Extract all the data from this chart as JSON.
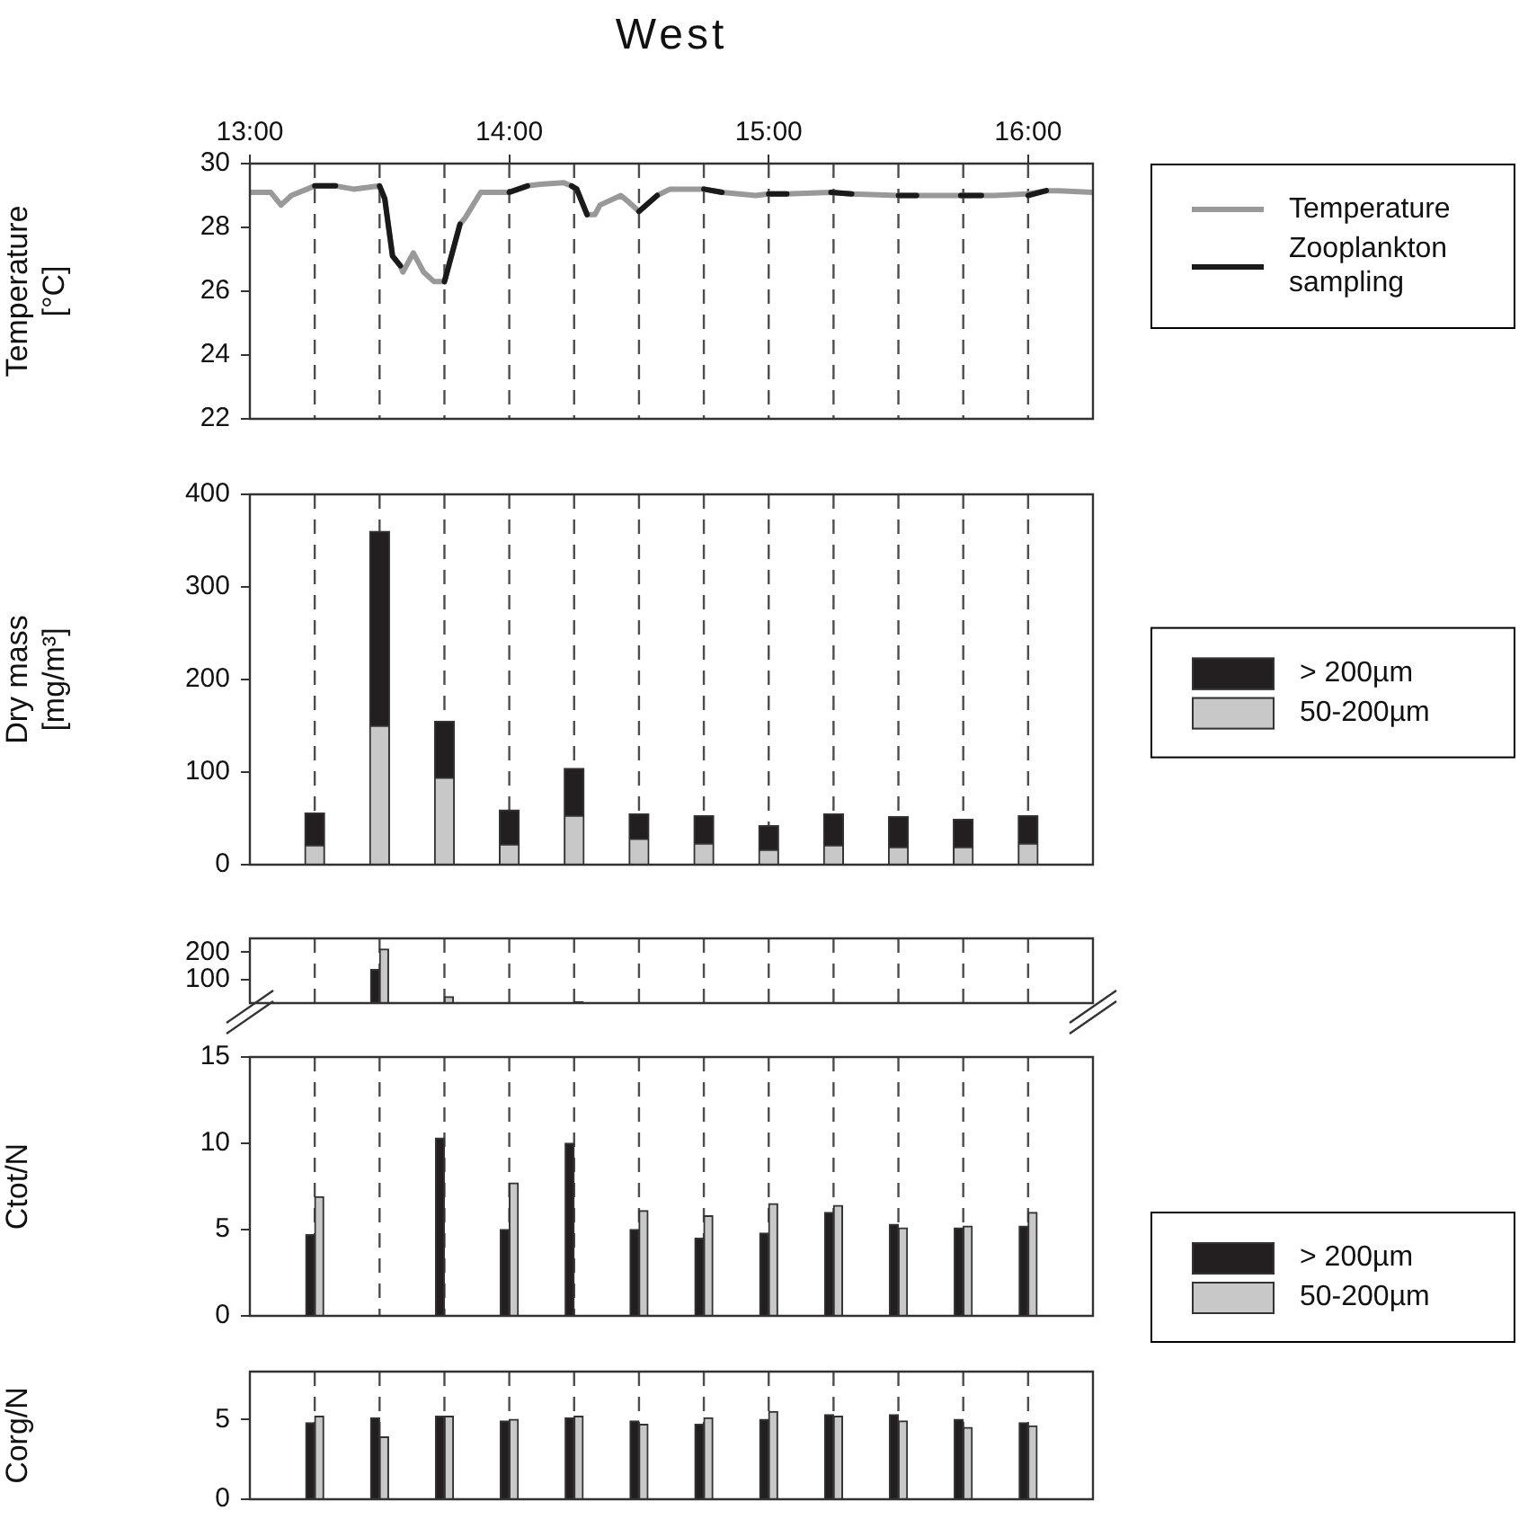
{
  "chart_data": [
    {
      "type": "line",
      "title": "West",
      "ylabel": "Temperature [°C]",
      "xlim": [
        13,
        16.25
      ],
      "xticks": [
        {
          "value": 13,
          "label": "13:00"
        },
        {
          "value": 14,
          "label": "14:00"
        },
        {
          "value": 15,
          "label": "15:00"
        },
        {
          "value": 16,
          "label": "16:00"
        }
      ],
      "ylim": [
        22,
        30
      ],
      "yticks": [
        22,
        24,
        26,
        28,
        30
      ],
      "legend": "top right",
      "series": [
        {
          "name": "Temperature",
          "color": "#999999",
          "x": [
            13.0,
            13.08,
            13.12,
            13.16,
            13.25,
            13.33,
            13.4,
            13.5,
            13.52,
            13.55,
            13.58,
            13.59,
            13.63,
            13.67,
            13.71,
            13.75,
            13.81,
            13.83,
            13.89,
            14.0,
            14.07,
            14.12,
            14.21,
            14.24,
            14.26,
            14.3,
            14.33,
            14.35,
            14.43,
            14.46,
            14.5,
            14.57,
            14.62,
            14.75,
            14.82,
            14.95,
            15.0,
            15.07,
            15.24,
            15.32,
            15.5,
            15.57,
            15.74,
            15.82,
            15.87,
            16.0,
            16.07,
            16.12,
            16.25
          ],
          "values": [
            29.1,
            29.1,
            28.7,
            29.0,
            29.3,
            29.3,
            29.2,
            29.3,
            28.9,
            27.1,
            26.8,
            26.6,
            27.2,
            26.6,
            26.3,
            26.3,
            28.1,
            28.3,
            29.1,
            29.1,
            29.3,
            29.35,
            29.4,
            29.3,
            29.2,
            28.4,
            28.4,
            28.7,
            29.0,
            28.8,
            28.5,
            29.0,
            29.2,
            29.2,
            29.1,
            29.0,
            29.05,
            29.05,
            29.1,
            29.05,
            29.0,
            29.0,
            29.0,
            29.0,
            29.0,
            29.05,
            29.15,
            29.15,
            29.1
          ]
        },
        {
          "name": "Zooplankton sampling",
          "color": "#1a1a1a",
          "x": [
            13.25,
            13.33,
            13.4,
            13.5,
            13.52,
            13.55,
            13.58,
            13.65,
            13.75,
            13.81,
            13.9,
            14.0,
            14.07,
            14.15,
            14.24,
            14.26,
            14.3,
            14.4,
            14.5,
            14.57,
            14.65,
            14.75,
            14.82,
            14.9,
            15.0,
            15.07,
            15.15,
            15.24,
            15.32,
            15.4,
            15.5,
            15.57,
            15.65,
            15.74,
            15.82,
            15.9,
            16.0,
            16.07
          ],
          "values": [
            29.3,
            29.3,
            null,
            29.3,
            28.9,
            27.1,
            26.8,
            null,
            26.3,
            28.1,
            null,
            29.1,
            29.3,
            null,
            29.3,
            29.2,
            28.4,
            null,
            28.5,
            29.0,
            null,
            29.2,
            29.1,
            null,
            29.05,
            29.05,
            null,
            29.1,
            29.05,
            null,
            29.0,
            29.0,
            null,
            29.0,
            29.0,
            null,
            29.0,
            29.15
          ]
        }
      ],
      "ref_lines": [
        {
          "axis": "x",
          "value": 13.25,
          "color": "#4d4d4d",
          "line_style": "dashed"
        },
        {
          "axis": "x",
          "value": 13.5,
          "color": "#4d4d4d",
          "line_style": "dashed"
        },
        {
          "axis": "x",
          "value": 13.75,
          "color": "#4d4d4d",
          "line_style": "dashed"
        },
        {
          "axis": "x",
          "value": 14,
          "color": "#4d4d4d",
          "line_style": "dashed"
        },
        {
          "axis": "x",
          "value": 14.25,
          "color": "#4d4d4d",
          "line_style": "dashed"
        },
        {
          "axis": "x",
          "value": 14.5,
          "color": "#4d4d4d",
          "line_style": "dashed"
        },
        {
          "axis": "x",
          "value": 14.75,
          "color": "#4d4d4d",
          "line_style": "dashed"
        },
        {
          "axis": "x",
          "value": 15,
          "color": "#4d4d4d",
          "line_style": "dashed"
        },
        {
          "axis": "x",
          "value": 15.25,
          "color": "#4d4d4d",
          "line_style": "dashed"
        },
        {
          "axis": "x",
          "value": 15.5,
          "color": "#4d4d4d",
          "line_style": "dashed"
        },
        {
          "axis": "x",
          "value": 15.75,
          "color": "#4d4d4d",
          "line_style": "dashed"
        },
        {
          "axis": "x",
          "value": 16,
          "color": "#4d4d4d",
          "line_style": "dashed"
        }
      ]
    },
    {
      "type": "bar",
      "stacked": true,
      "ylabel": "Dry mass [mg/m³]",
      "x": [
        13.25,
        13.5,
        13.75,
        14,
        14.25,
        14.5,
        14.75,
        15,
        15.25,
        15.5,
        15.75,
        16
      ],
      "xlim": [
        13,
        16.25
      ],
      "ylim": [
        0,
        400
      ],
      "yticks": [
        0,
        100,
        200,
        300,
        400
      ],
      "tick_labels": "y",
      "legend": "right",
      "series": [
        {
          "name": "50-200µm",
          "color": "#c8c8c8",
          "values": [
            21,
            150,
            94,
            22,
            53,
            28,
            23,
            16,
            21,
            19,
            19,
            23
          ]
        },
        {
          "name": "> 200µm",
          "color": "#231f20",
          "values": [
            35,
            210,
            61,
            37,
            51,
            27,
            30,
            26,
            34,
            33,
            30,
            30
          ]
        }
      ],
      "ref_lines": [
        {
          "axis": "x",
          "value": 13.25,
          "color": "#4d4d4d",
          "line_style": "dashed"
        },
        {
          "axis": "x",
          "value": 13.5,
          "color": "#4d4d4d",
          "line_style": "dashed"
        },
        {
          "axis": "x",
          "value": 13.75,
          "color": "#4d4d4d",
          "line_style": "dashed"
        },
        {
          "axis": "x",
          "value": 14,
          "color": "#4d4d4d",
          "line_style": "dashed"
        },
        {
          "axis": "x",
          "value": 14.25,
          "color": "#4d4d4d",
          "line_style": "dashed"
        },
        {
          "axis": "x",
          "value": 14.5,
          "color": "#4d4d4d",
          "line_style": "dashed"
        },
        {
          "axis": "x",
          "value": 14.75,
          "color": "#4d4d4d",
          "line_style": "dashed"
        },
        {
          "axis": "x",
          "value": 15,
          "color": "#4d4d4d",
          "line_style": "dashed"
        },
        {
          "axis": "x",
          "value": 15.25,
          "color": "#4d4d4d",
          "line_style": "dashed"
        },
        {
          "axis": "x",
          "value": 15.5,
          "color": "#4d4d4d",
          "line_style": "dashed"
        },
        {
          "axis": "x",
          "value": 15.75,
          "color": "#4d4d4d",
          "line_style": "dashed"
        },
        {
          "axis": "x",
          "value": 16,
          "color": "#4d4d4d",
          "line_style": "dashed"
        }
      ]
    },
    {
      "type": "bar",
      "xlim": [
        13,
        16.25
      ],
      "ylim": [
        15,
        250
      ],
      "yticks": [
        100,
        200
      ],
      "tick_labels": "y",
      "series": [
        {
          "color": "#231f20",
          "x": [
            13.5
          ],
          "values": [
            137
          ]
        },
        {
          "color": "#c8c8c8",
          "x": [
            13.5,
            13.75,
            14.25
          ],
          "values": [
            211,
            38,
            20
          ]
        }
      ],
      "ref_lines": [
        {
          "axis": "x",
          "value": 13.25,
          "color": "#4d4d4d",
          "line_style": "dashed"
        },
        {
          "axis": "x",
          "value": 13.5,
          "color": "#4d4d4d",
          "line_style": "dashed"
        },
        {
          "axis": "x",
          "value": 13.75,
          "color": "#4d4d4d",
          "line_style": "dashed"
        },
        {
          "axis": "x",
          "value": 14,
          "color": "#4d4d4d",
          "line_style": "dashed"
        },
        {
          "axis": "x",
          "value": 14.25,
          "color": "#4d4d4d",
          "line_style": "dashed"
        },
        {
          "axis": "x",
          "value": 14.5,
          "color": "#4d4d4d",
          "line_style": "dashed"
        },
        {
          "axis": "x",
          "value": 14.75,
          "color": "#4d4d4d",
          "line_style": "dashed"
        },
        {
          "axis": "x",
          "value": 15,
          "color": "#4d4d4d",
          "line_style": "dashed"
        },
        {
          "axis": "x",
          "value": 15.25,
          "color": "#4d4d4d",
          "line_style": "dashed"
        },
        {
          "axis": "x",
          "value": 15.5,
          "color": "#4d4d4d",
          "line_style": "dashed"
        },
        {
          "axis": "x",
          "value": 15.75,
          "color": "#4d4d4d",
          "line_style": "dashed"
        },
        {
          "axis": "x",
          "value": 16,
          "color": "#4d4d4d",
          "line_style": "dashed"
        }
      ]
    },
    {
      "type": "bar",
      "ylabel": "Ctot/N",
      "x": [
        13.25,
        13.5,
        13.75,
        14,
        14.25,
        14.5,
        14.75,
        15,
        15.25,
        15.5,
        15.75,
        16
      ],
      "xlim": [
        13,
        16.25
      ],
      "ylim": [
        0,
        15
      ],
      "yticks": [
        0,
        5,
        10,
        15
      ],
      "tick_labels": "y",
      "legend": "bottom right",
      "series": [
        {
          "name": "> 200µm",
          "color": "#231f20",
          "values": [
            4.7,
            null,
            10.3,
            5.0,
            10.0,
            5.0,
            4.5,
            4.8,
            6.0,
            5.3,
            5.1,
            5.2
          ]
        },
        {
          "name": "50-200µm",
          "color": "#c8c8c8",
          "values": [
            6.9,
            null,
            null,
            7.7,
            null,
            6.1,
            5.8,
            6.5,
            6.4,
            5.1,
            5.2,
            6.0
          ]
        }
      ],
      "ref_lines": [
        {
          "axis": "x",
          "value": 13.25,
          "color": "#4d4d4d",
          "line_style": "dashed"
        },
        {
          "axis": "x",
          "value": 13.5,
          "color": "#4d4d4d",
          "line_style": "dashed"
        },
        {
          "axis": "x",
          "value": 13.75,
          "color": "#4d4d4d",
          "line_style": "dashed"
        },
        {
          "axis": "x",
          "value": 14,
          "color": "#4d4d4d",
          "line_style": "dashed"
        },
        {
          "axis": "x",
          "value": 14.25,
          "color": "#4d4d4d",
          "line_style": "dashed"
        },
        {
          "axis": "x",
          "value": 14.5,
          "color": "#4d4d4d",
          "line_style": "dashed"
        },
        {
          "axis": "x",
          "value": 14.75,
          "color": "#4d4d4d",
          "line_style": "dashed"
        },
        {
          "axis": "x",
          "value": 15,
          "color": "#4d4d4d",
          "line_style": "dashed"
        },
        {
          "axis": "x",
          "value": 15.25,
          "color": "#4d4d4d",
          "line_style": "dashed"
        },
        {
          "axis": "x",
          "value": 15.5,
          "color": "#4d4d4d",
          "line_style": "dashed"
        },
        {
          "axis": "x",
          "value": 15.75,
          "color": "#4d4d4d",
          "line_style": "dashed"
        },
        {
          "axis": "x",
          "value": 16,
          "color": "#4d4d4d",
          "line_style": "dashed"
        }
      ]
    },
    {
      "type": "bar",
      "ylabel": "Corg/N",
      "x": [
        13.25,
        13.5,
        13.75,
        14,
        14.25,
        14.5,
        14.75,
        15,
        15.25,
        15.5,
        15.75,
        16
      ],
      "xlim": [
        13,
        16.25
      ],
      "ylim": [
        0,
        8
      ],
      "yticks": [
        0,
        5
      ],
      "tick_labels": "y",
      "series": [
        {
          "color": "#231f20",
          "values": [
            4.8,
            5.1,
            5.2,
            4.9,
            5.1,
            4.9,
            4.7,
            5.0,
            5.3,
            5.3,
            5.0,
            4.8
          ]
        },
        {
          "color": "#c8c8c8",
          "values": [
            5.2,
            3.9,
            5.2,
            5.0,
            5.2,
            4.7,
            5.1,
            5.5,
            5.2,
            4.9,
            4.5,
            4.6
          ]
        }
      ],
      "ref_lines": [
        {
          "axis": "x",
          "value": 13.25,
          "color": "#4d4d4d",
          "line_style": "dashed"
        },
        {
          "axis": "x",
          "value": 13.5,
          "color": "#4d4d4d",
          "line_style": "dashed"
        },
        {
          "axis": "x",
          "value": 13.75,
          "color": "#4d4d4d",
          "line_style": "dashed"
        },
        {
          "axis": "x",
          "value": 14,
          "color": "#4d4d4d",
          "line_style": "dashed"
        },
        {
          "axis": "x",
          "value": 14.25,
          "color": "#4d4d4d",
          "line_style": "dashed"
        },
        {
          "axis": "x",
          "value": 14.5,
          "color": "#4d4d4d",
          "line_style": "dashed"
        },
        {
          "axis": "x",
          "value": 14.75,
          "color": "#4d4d4d",
          "line_style": "dashed"
        },
        {
          "axis": "x",
          "value": 15,
          "color": "#4d4d4d",
          "line_style": "dashed"
        },
        {
          "axis": "x",
          "value": 15.25,
          "color": "#4d4d4d",
          "line_style": "dashed"
        },
        {
          "axis": "x",
          "value": 15.5,
          "color": "#4d4d4d",
          "line_style": "dashed"
        },
        {
          "axis": "x",
          "value": 15.75,
          "color": "#4d4d4d",
          "line_style": "dashed"
        },
        {
          "axis": "x",
          "value": 16,
          "color": "#4d4d4d",
          "line_style": "dashed"
        }
      ]
    }
  ]
}
